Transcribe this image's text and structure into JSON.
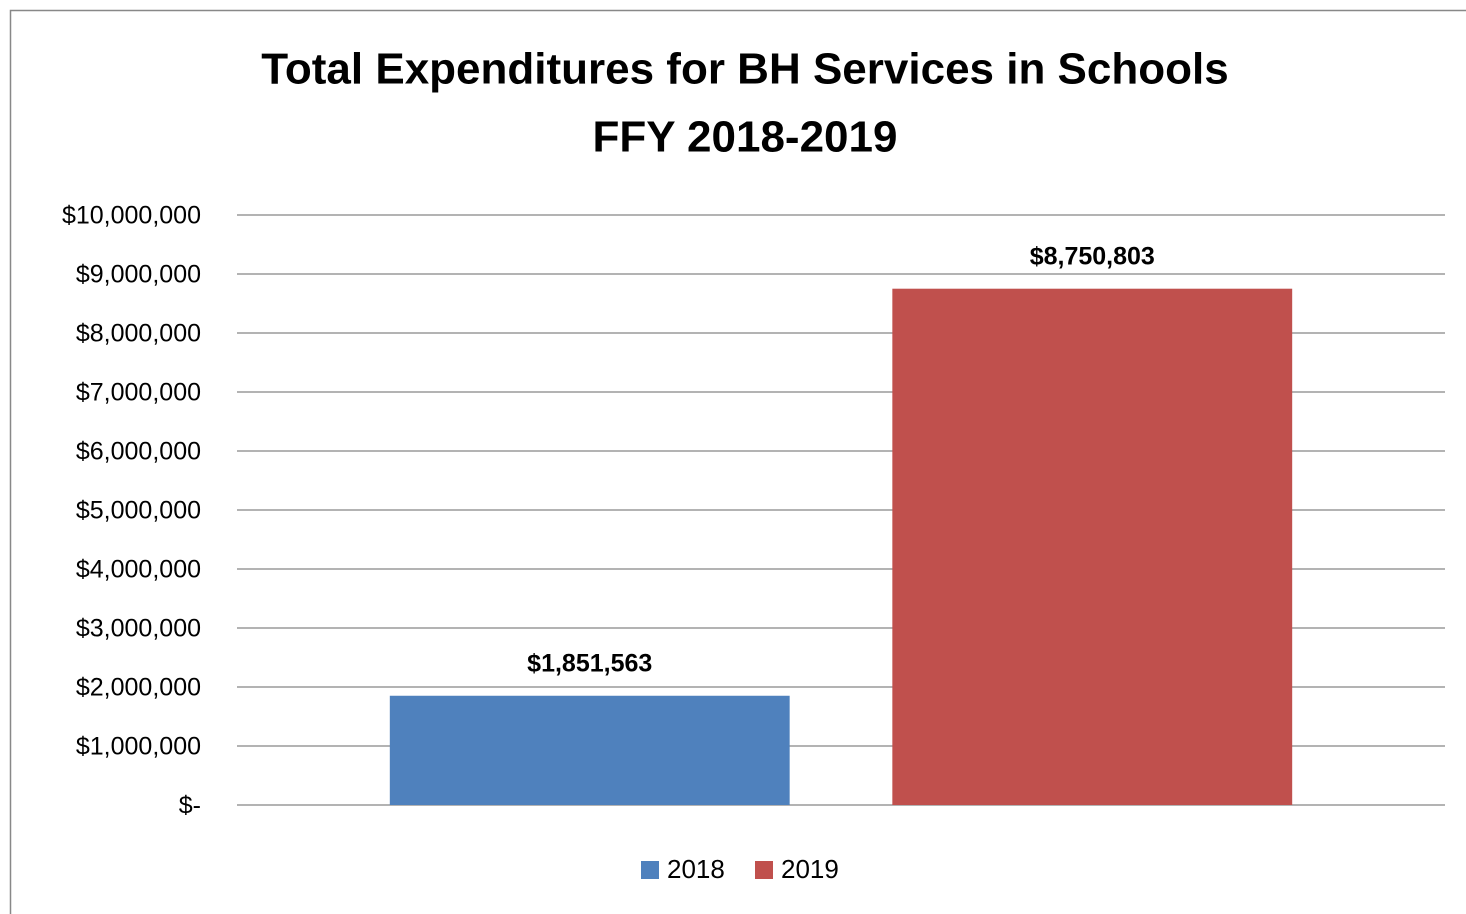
{
  "chart_data": {
    "type": "bar",
    "title": [
      "Total Expenditures for BH Services in Schools",
      "FFY 2018-2019"
    ],
    "categories": [
      null
    ],
    "series": [
      {
        "name": "2018",
        "color": "#4f81bd",
        "values": [
          1851563
        ],
        "value_labels": [
          "$1,851,563"
        ]
      },
      {
        "name": "2019",
        "color": "#c0504d",
        "values": [
          8750803
        ],
        "value_labels": [
          "$8,750,803"
        ]
      }
    ],
    "ylim": [
      0,
      10000000
    ],
    "yticks": [
      {
        "value": 0,
        "label": "$-"
      },
      {
        "value": 1000000,
        "label": "$1,000,000"
      },
      {
        "value": 2000000,
        "label": "$2,000,000"
      },
      {
        "value": 3000000,
        "label": "$3,000,000"
      },
      {
        "value": 4000000,
        "label": "$4,000,000"
      },
      {
        "value": 5000000,
        "label": "$5,000,000"
      },
      {
        "value": 6000000,
        "label": "$6,000,000"
      },
      {
        "value": 7000000,
        "label": "$7,000,000"
      },
      {
        "value": 8000000,
        "label": "$8,000,000"
      },
      {
        "value": 9000000,
        "label": "$9,000,000"
      },
      {
        "value": 10000000,
        "label": "$10,000,000"
      }
    ],
    "grid": true,
    "legend": "bottom"
  }
}
